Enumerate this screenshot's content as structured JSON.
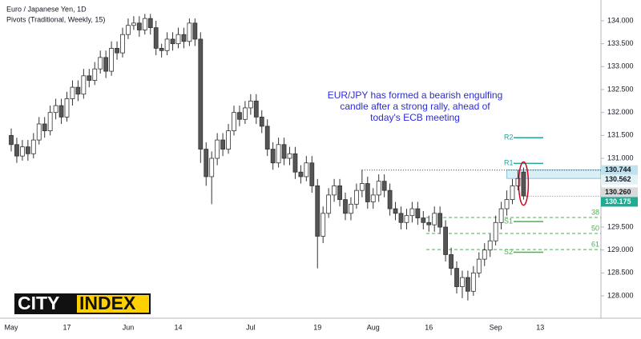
{
  "chart_data": {
    "type": "candlestick",
    "title": "Euro / Japanese Yen, 1D",
    "subtitle": "Pivots (Traditional, Weekly, 15)",
    "annotation": [
      "EUR/JPY has formed a bearish engulfing",
      "candle after a strong rally, ahead of",
      "today's ECB meeting"
    ],
    "logo": [
      "CITY",
      "INDEX"
    ],
    "categories": [
      "May",
      null,
      null,
      null,
      null,
      null,
      null,
      null,
      null,
      null,
      "17",
      null,
      null,
      null,
      null,
      null,
      null,
      null,
      null,
      null,
      null,
      "Jun",
      null,
      null,
      null,
      null,
      null,
      null,
      null,
      null,
      "14",
      null,
      null,
      null,
      null,
      null,
      null,
      null,
      null,
      null,
      null,
      null,
      null,
      "Jul",
      null,
      null,
      null,
      null,
      null,
      null,
      null,
      null,
      null,
      null,
      null,
      "19",
      null,
      null,
      null,
      null,
      null,
      null,
      null,
      null,
      null,
      "Aug",
      null,
      null,
      null,
      null,
      null,
      null,
      null,
      null,
      null,
      "16",
      null,
      null,
      null,
      null,
      null,
      null,
      null,
      null,
      null,
      null,
      null,
      "Sep",
      null,
      null,
      null,
      null,
      null,
      null,
      null,
      "13"
    ],
    "open": [
      131.5,
      131.3,
      131.05,
      131.25,
      131.1,
      131.4,
      131.75,
      131.6,
      132.0,
      132.15,
      131.9,
      132.3,
      132.55,
      132.4,
      132.8,
      132.7,
      132.95,
      133.2,
      132.9,
      133.4,
      133.3,
      133.7,
      133.9,
      133.95,
      133.8,
      134.05,
      133.85,
      133.4,
      133.35,
      133.6,
      133.5,
      133.7,
      133.55,
      133.95,
      133.6,
      131.2,
      130.6,
      131.0,
      131.4,
      131.2,
      131.6,
      132.0,
      131.85,
      132.1,
      132.25,
      131.9,
      131.7,
      131.2,
      130.9,
      131.3,
      131.0,
      131.1,
      130.7,
      130.6,
      130.9,
      130.4,
      129.3,
      129.8,
      130.2,
      130.4,
      130.1,
      129.8,
      130.0,
      130.3,
      130.45,
      130.05,
      130.2,
      130.5,
      130.3,
      129.9,
      129.8,
      129.6,
      129.75,
      129.9,
      129.7,
      129.6,
      129.55,
      129.8,
      129.5,
      128.9,
      128.6,
      128.2,
      128.4,
      128.1,
      128.5,
      128.8,
      129.0,
      129.2,
      129.6,
      129.9,
      130.1,
      130.4,
      130.7,
      null,
      null,
      null
    ],
    "high": [
      131.65,
      131.45,
      131.4,
      131.4,
      131.55,
      131.9,
      131.9,
      132.15,
      132.3,
      132.3,
      132.45,
      132.7,
      132.7,
      132.95,
      132.95,
      133.1,
      133.35,
      133.35,
      133.55,
      133.55,
      133.85,
      134.05,
      134.1,
      134.1,
      134.15,
      134.15,
      134.0,
      133.5,
      133.75,
      133.75,
      133.85,
      133.85,
      134.05,
      134.05,
      133.75,
      131.35,
      131.15,
      131.55,
      131.55,
      131.75,
      132.15,
      132.15,
      132.25,
      132.4,
      132.4,
      132.05,
      131.85,
      131.35,
      131.45,
      131.45,
      131.25,
      131.25,
      130.85,
      131.05,
      131.05,
      130.55,
      129.95,
      130.35,
      130.55,
      130.55,
      130.25,
      130.15,
      130.45,
      130.75,
      130.6,
      130.35,
      130.65,
      130.65,
      130.45,
      130.05,
      129.95,
      129.9,
      130.05,
      130.05,
      129.85,
      129.75,
      129.95,
      129.95,
      129.65,
      129.05,
      128.75,
      128.55,
      128.55,
      128.65,
      128.95,
      129.15,
      129.35,
      129.75,
      130.05,
      130.3,
      130.55,
      130.74,
      130.8,
      null,
      null,
      null
    ],
    "low": [
      131.15,
      130.9,
      130.95,
      130.95,
      131.0,
      131.3,
      131.45,
      131.5,
      131.85,
      131.75,
      131.8,
      132.15,
      132.25,
      132.3,
      132.55,
      132.6,
      132.85,
      132.75,
      132.8,
      133.15,
      133.2,
      133.6,
      133.8,
      133.65,
      133.7,
      133.7,
      133.25,
      133.2,
      133.25,
      133.35,
      133.4,
      133.4,
      133.45,
      133.45,
      130.9,
      130.4,
      130.0,
      130.85,
      131.05,
      131.1,
      131.5,
      131.7,
      131.75,
      131.95,
      131.75,
      131.55,
      131.05,
      130.75,
      130.8,
      130.85,
      130.85,
      130.55,
      130.45,
      130.5,
      130.25,
      128.6,
      129.15,
      129.7,
      130.05,
      129.95,
      129.65,
      129.65,
      129.9,
      130.15,
      129.9,
      129.9,
      130.05,
      130.15,
      129.75,
      129.65,
      129.45,
      129.45,
      129.6,
      129.55,
      129.45,
      129.4,
      129.4,
      129.35,
      128.75,
      128.45,
      128.05,
      127.95,
      127.9,
      128.0,
      128.4,
      128.65,
      128.85,
      129.1,
      129.45,
      129.75,
      130.0,
      130.3,
      130.1,
      null,
      null,
      null
    ],
    "close": [
      131.3,
      131.05,
      131.25,
      131.1,
      131.4,
      131.75,
      131.6,
      132.0,
      132.15,
      131.9,
      132.3,
      132.55,
      132.4,
      132.8,
      132.7,
      132.95,
      133.2,
      132.9,
      133.4,
      133.3,
      133.7,
      133.9,
      133.95,
      133.8,
      134.05,
      133.85,
      133.4,
      133.35,
      133.6,
      133.5,
      133.7,
      133.55,
      133.95,
      133.6,
      131.2,
      130.6,
      131.0,
      131.4,
      131.2,
      131.6,
      132.0,
      131.85,
      132.1,
      132.25,
      131.9,
      131.7,
      131.2,
      130.9,
      131.3,
      131.0,
      131.1,
      130.7,
      130.6,
      130.9,
      130.4,
      129.3,
      129.8,
      130.2,
      130.4,
      130.1,
      129.8,
      130.0,
      130.3,
      130.45,
      130.05,
      130.2,
      130.5,
      130.3,
      129.9,
      129.8,
      129.6,
      129.75,
      129.9,
      129.7,
      129.6,
      129.55,
      129.8,
      129.5,
      128.9,
      128.6,
      128.2,
      128.4,
      128.1,
      128.5,
      128.8,
      129.0,
      129.2,
      129.6,
      129.9,
      130.1,
      130.4,
      130.56,
      130.18,
      null,
      null,
      null
    ],
    "up_color": "#ffffff",
    "down_color": "#555555",
    "wick_color": "#333333",
    "ylim": [
      127.8,
      134.3
    ],
    "yticks": [
      {
        "value": 128,
        "label": "128.000"
      },
      {
        "value": 128.5,
        "label": "128.500"
      },
      {
        "value": 129,
        "label": "129.000"
      },
      {
        "value": 129.5,
        "label": "129.500"
      },
      {
        "value": 130,
        "label": "130.000"
      },
      {
        "value": 130.5,
        "label": "130.500"
      },
      {
        "value": 131,
        "label": "131.000"
      },
      {
        "value": 131.5,
        "label": "131.500"
      },
      {
        "value": 132,
        "label": "132.000"
      },
      {
        "value": 132.5,
        "label": "132.500"
      },
      {
        "value": 133,
        "label": "133.000"
      },
      {
        "value": 133.5,
        "label": "133.500"
      },
      {
        "value": 134,
        "label": "134.000"
      }
    ],
    "grid": false,
    "pivots": [
      {
        "name": "R2",
        "value": 131.45,
        "color": "#26a69a"
      },
      {
        "name": "R1",
        "value": 130.89,
        "color": "#26a69a"
      },
      {
        "name": "S1",
        "value": 129.62,
        "color": "#4caf50"
      },
      {
        "name": "S2",
        "value": 128.95,
        "color": "#4caf50"
      }
    ],
    "fibs": [
      {
        "name": "38",
        "value": 129.71
      },
      {
        "name": "50",
        "value": 129.36
      },
      {
        "name": "61",
        "value": 129.01
      }
    ],
    "fib_color": "#4caf50",
    "price_labels": [
      {
        "value": 130.744,
        "label": "130.744",
        "color": "#bfe3ee"
      },
      {
        "value": 130.562,
        "label": "130.562",
        "color": "#e3f2f7"
      },
      {
        "value": 130.26,
        "label": "130.260",
        "color": "#d9d9d9"
      },
      {
        "value": 130.175,
        "label": "130.175",
        "color": "#22ab94"
      }
    ]
  }
}
